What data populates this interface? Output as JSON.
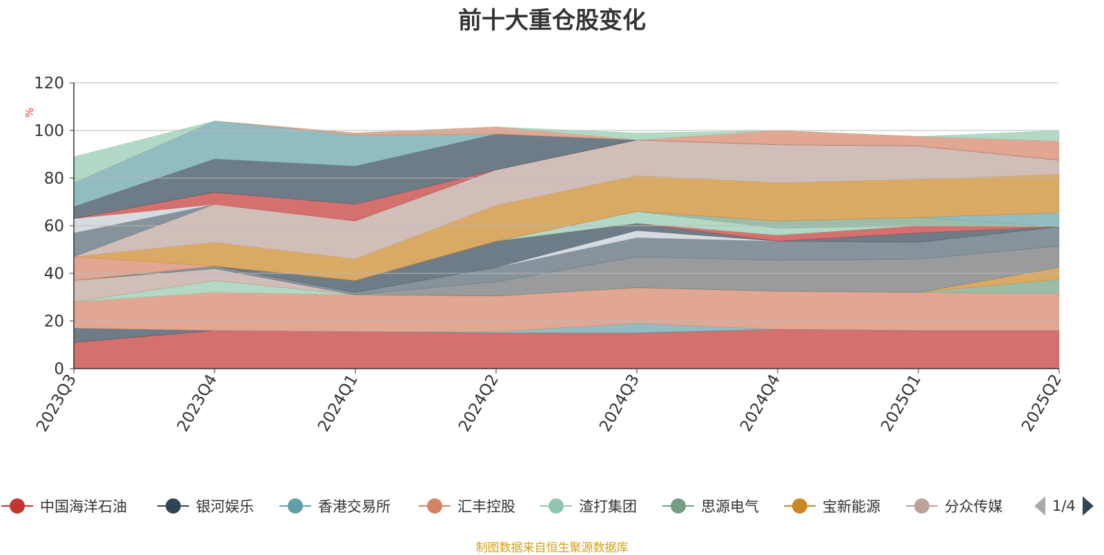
{
  "chart_data": {
    "type": "area",
    "title": "前十大重仓股变化",
    "ylabel": "%",
    "ylim": [
      0,
      120
    ],
    "yticks": [
      0,
      20,
      40,
      60,
      80,
      100,
      120
    ],
    "x": [
      "2023Q3",
      "2023Q4",
      "2024Q1",
      "2024Q2",
      "2024Q3",
      "2024Q4",
      "2025Q1",
      "2025Q2"
    ],
    "stacked": true,
    "grid": true,
    "series": [
      {
        "name": "中国海洋石油",
        "color": "#c23531",
        "values": [
          11,
          16,
          15.5,
          15,
          15,
          16.5,
          16,
          16
        ]
      },
      {
        "name": "银河娱乐",
        "color": "#2f4554",
        "values": [
          6,
          0,
          0,
          0,
          0,
          0,
          0,
          0
        ]
      },
      {
        "name": "香港交易所",
        "color": "#61a0a8",
        "values": [
          0,
          0,
          0,
          0.5,
          4,
          0,
          0,
          0
        ]
      },
      {
        "name": "汇丰控股",
        "color": "#d48265",
        "values": [
          11,
          16,
          15.5,
          15,
          15,
          16,
          16,
          15.5
        ]
      },
      {
        "name": "渣打集团",
        "color": "#91c7ae",
        "values": [
          0,
          5,
          0,
          0,
          0,
          0,
          0,
          0
        ]
      },
      {
        "name": "思源电气",
        "color": "#749f83",
        "values": [
          0,
          0,
          0,
          0,
          0,
          0,
          0,
          6
        ]
      },
      {
        "name": "宝新能源",
        "color": "#ca8622",
        "values": [
          0,
          0,
          0,
          0,
          0,
          0,
          0,
          5
        ]
      },
      {
        "name": "分众传媒",
        "color": "#bda29a",
        "values": [
          9,
          5,
          0,
          0,
          0,
          0,
          0,
          0
        ]
      },
      {
        "name": "",
        "color": "#6e7074",
        "values": [
          0,
          0,
          0,
          6,
          13,
          13,
          14,
          9
        ]
      },
      {
        "name": "",
        "color": "#546570",
        "values": [
          0,
          1,
          1,
          6,
          8,
          8,
          7,
          8
        ]
      },
      {
        "name": "",
        "color": "#c4ccd3",
        "values": [
          0,
          0,
          0,
          0,
          3,
          0,
          0,
          0
        ]
      },
      {
        "name": "",
        "color": "#2f4554",
        "values": [
          0,
          0,
          5,
          11,
          3,
          0,
          4,
          0
        ]
      },
      {
        "name": "",
        "color": "#c23531",
        "values": [
          0,
          0,
          0,
          0,
          0,
          2.5,
          3,
          0
        ]
      },
      {
        "name": "",
        "color": "#91c7ae",
        "values": [
          0,
          0,
          0,
          0,
          5,
          3,
          0,
          0
        ]
      },
      {
        "name": "",
        "color": "#749f83",
        "values": [
          0,
          0,
          0,
          0,
          0,
          3,
          3.5,
          0
        ]
      },
      {
        "name": "",
        "color": "#61a0a8",
        "values": [
          0,
          0,
          0,
          0,
          0,
          0,
          0,
          6
        ]
      },
      {
        "name": "",
        "color": "#d48265",
        "values": [
          10,
          0,
          0,
          0,
          0,
          0,
          0,
          0
        ]
      },
      {
        "name": "",
        "color": "#ca8622",
        "values": [
          0,
          10,
          9,
          15,
          15,
          16,
          16,
          16
        ]
      },
      {
        "name": "",
        "color": "#bda29a",
        "values": [
          0,
          16,
          16,
          15,
          15,
          16,
          14,
          6
        ]
      },
      {
        "name": "",
        "color": "#546570",
        "values": [
          10,
          0,
          0,
          0,
          0,
          0,
          0,
          0
        ]
      },
      {
        "name": "",
        "color": "#c4ccd3",
        "values": [
          6,
          0,
          0,
          0,
          0,
          0,
          0,
          0
        ]
      },
      {
        "name": "",
        "color": "#c23531",
        "values": [
          0,
          5,
          7,
          0,
          0,
          0,
          0,
          0
        ]
      },
      {
        "name": "",
        "color": "#2f4554",
        "values": [
          5,
          14,
          16,
          15,
          0,
          0,
          0,
          0
        ]
      },
      {
        "name": "",
        "color": "#61a0a8",
        "values": [
          10,
          16,
          13,
          0,
          0,
          0,
          0,
          0
        ]
      },
      {
        "name": "",
        "color": "#d48265",
        "values": [
          0,
          0,
          1,
          3,
          0,
          6,
          4,
          8
        ]
      },
      {
        "name": "",
        "color": "#91c7ae",
        "values": [
          11,
          0,
          0,
          0,
          3,
          0,
          0,
          4.5
        ]
      }
    ]
  },
  "legend": {
    "items": [
      {
        "label": "中国海洋石油",
        "color": "#c23531"
      },
      {
        "label": "银河娱乐",
        "color": "#2f4554"
      },
      {
        "label": "香港交易所",
        "color": "#61a0a8"
      },
      {
        "label": "汇丰控股",
        "color": "#d48265"
      },
      {
        "label": "渣打集团",
        "color": "#91c7ae"
      },
      {
        "label": "思源电气",
        "color": "#749f83"
      },
      {
        "label": "宝新能源",
        "color": "#ca8622"
      },
      {
        "label": "分众传媒",
        "color": "#bda29a"
      }
    ],
    "page_text": "1/4"
  },
  "footer": {
    "text": "制图数据来自恒生聚源数据库"
  }
}
